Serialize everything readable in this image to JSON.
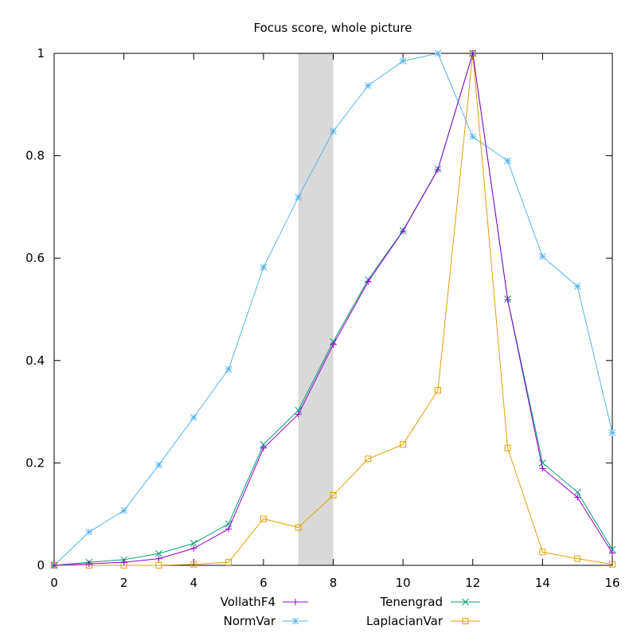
{
  "chart_data": {
    "type": "line",
    "title": "Focus score, whole picture",
    "xlabel": "",
    "ylabel": "",
    "xlim": [
      0,
      16
    ],
    "ylim": [
      0,
      1
    ],
    "xticks": [
      "0",
      "2",
      "4",
      "6",
      "8",
      "10",
      "12",
      "14",
      "16"
    ],
    "yticks": [
      "0",
      "0.2",
      "0.4",
      "0.6",
      "0.8",
      "1"
    ],
    "grid": false,
    "legend_position": "bottom-center",
    "shaded_band": {
      "x_start": 7,
      "x_end": 8,
      "color": "#d9d9d9"
    },
    "x": [
      0,
      1,
      2,
      3,
      4,
      5,
      6,
      7,
      8,
      9,
      10,
      11,
      12,
      13,
      14,
      15,
      16
    ],
    "series": [
      {
        "name": "VollathF4",
        "color": "#9400d3",
        "marker": "plus",
        "values": [
          0.0,
          0.003,
          0.006,
          0.013,
          0.033,
          0.071,
          0.229,
          0.295,
          0.431,
          0.554,
          0.653,
          0.773,
          1.0,
          0.519,
          0.189,
          0.133,
          0.024
        ]
      },
      {
        "name": "NormVar",
        "color": "#56b4e9",
        "marker": "star",
        "values": [
          0.0,
          0.065,
          0.107,
          0.196,
          0.289,
          0.383,
          0.582,
          0.719,
          0.848,
          0.937,
          0.985,
          1.0,
          0.837,
          0.79,
          0.603,
          0.545,
          0.259
        ]
      },
      {
        "name": "Tenengrad",
        "color": "#009e73",
        "marker": "cross",
        "values": [
          0.0,
          0.006,
          0.011,
          0.023,
          0.043,
          0.081,
          0.236,
          0.303,
          0.437,
          0.558,
          0.654,
          0.774,
          1.0,
          0.52,
          0.2,
          0.143,
          0.031
        ]
      },
      {
        "name": "LaplacianVar",
        "color": "#e69f00",
        "marker": "square",
        "values": [
          0.0,
          0.0,
          0.0,
          0.0,
          0.002,
          0.006,
          0.091,
          0.074,
          0.137,
          0.208,
          0.236,
          0.342,
          1.0,
          0.229,
          0.026,
          0.013,
          0.002
        ]
      }
    ]
  }
}
